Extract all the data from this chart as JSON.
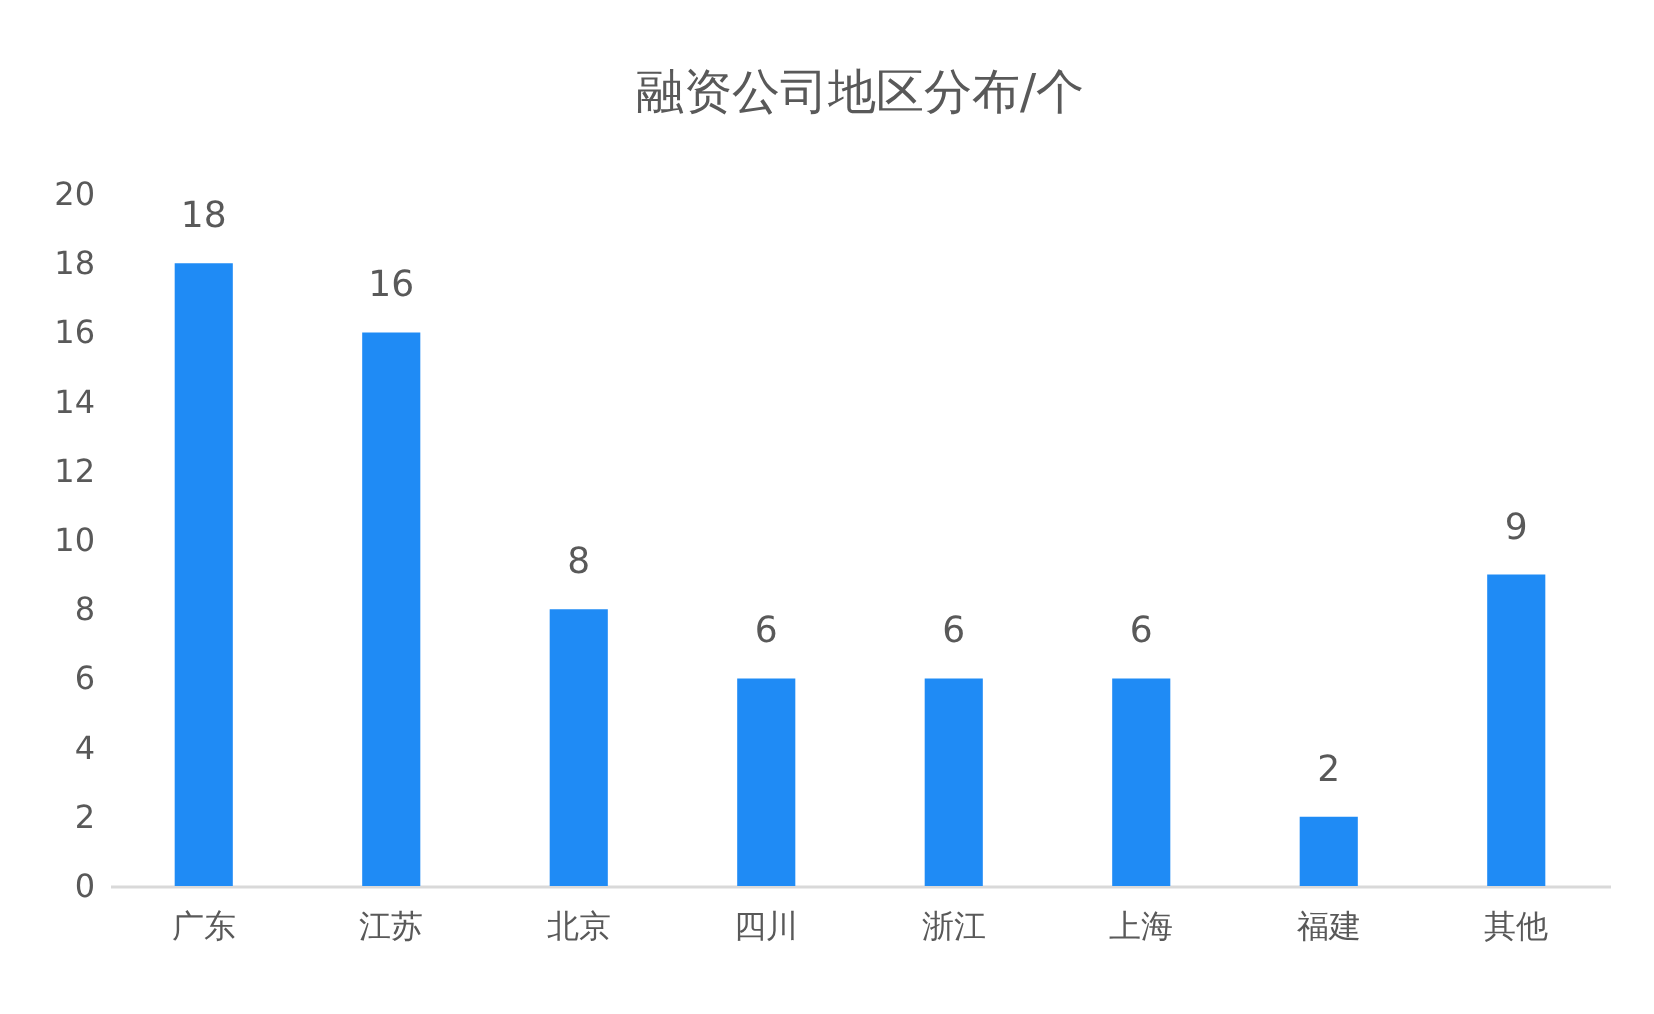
{
  "chart_data": {
    "type": "bar",
    "title": "融资公司地区分布/个",
    "categories": [
      "广东",
      "江苏",
      "北京",
      "四川",
      "浙江",
      "上海",
      "福建",
      "其他"
    ],
    "values": [
      18,
      16,
      8,
      6,
      6,
      6,
      2,
      9
    ],
    "color": "#1f8bf5",
    "ylim": [
      0,
      20
    ],
    "yticks": [
      0,
      2,
      4,
      6,
      8,
      10,
      12,
      14,
      16,
      18,
      20
    ],
    "grid": false,
    "data_labels": true
  }
}
